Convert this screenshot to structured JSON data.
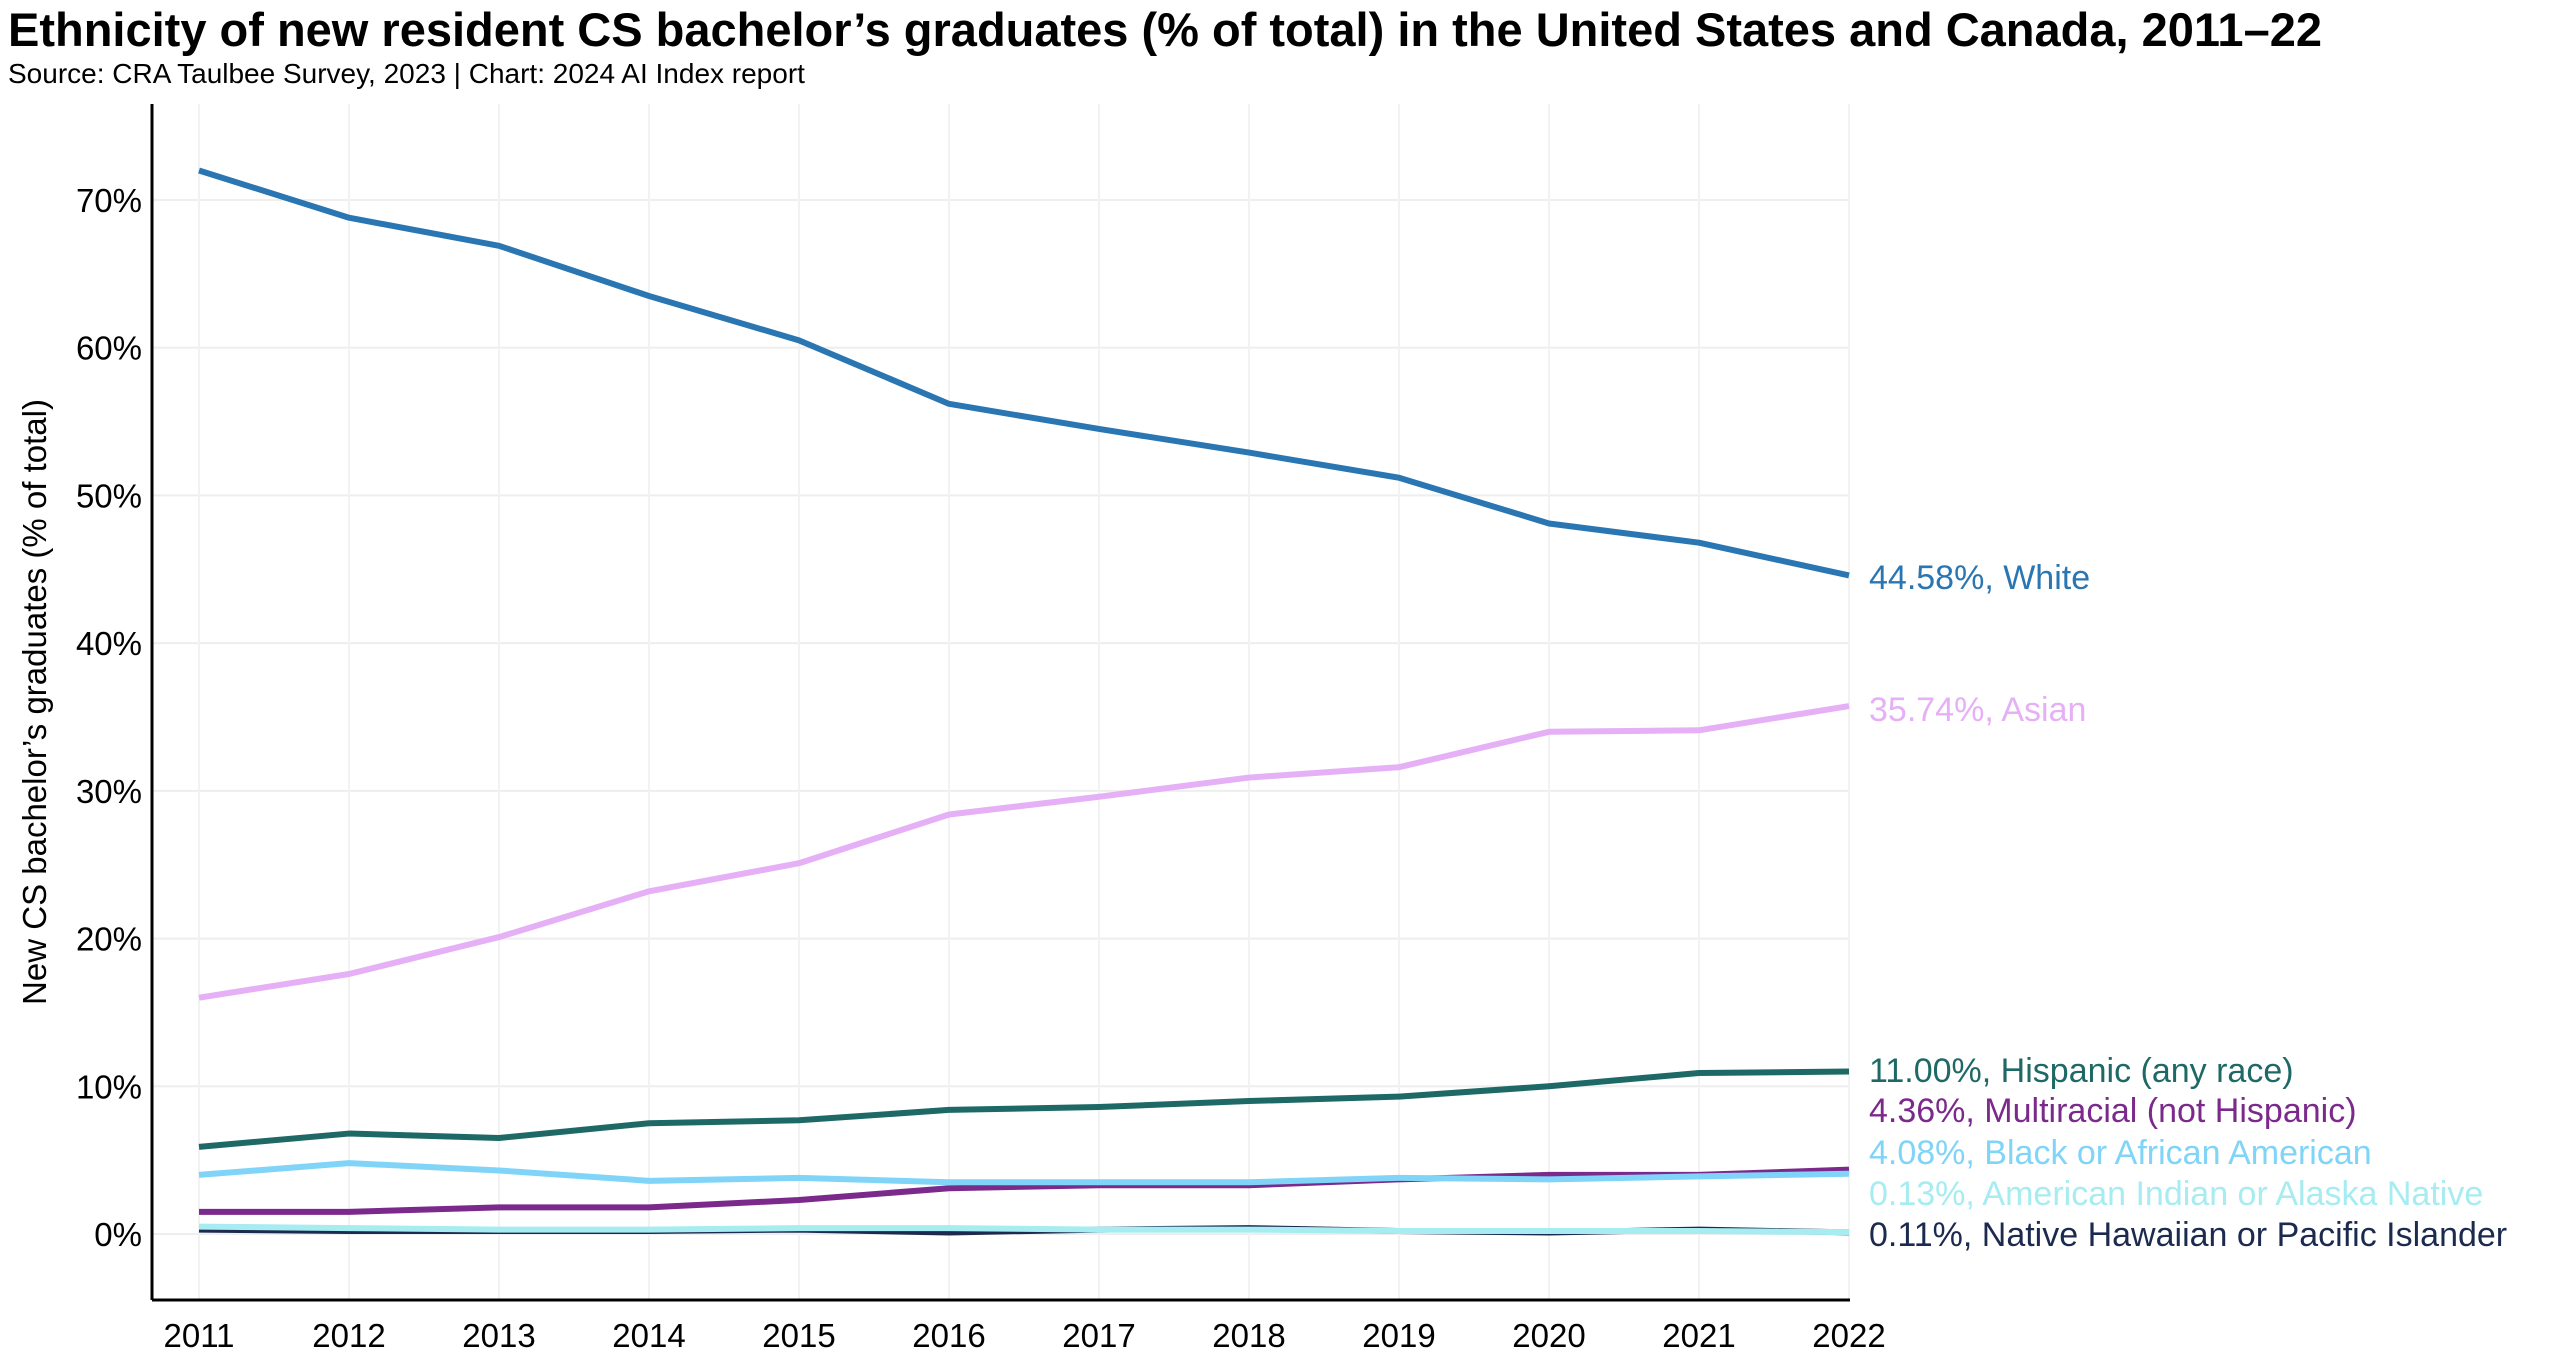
{
  "chart_data": {
    "type": "line",
    "title": "Ethnicity of new resident CS bachelor’s graduates (% of total) in the United States and Canada, 2011–22",
    "subtitle": "Source: CRA Taulbee Survey, 2023 | Chart: 2024 AI Index report",
    "xlabel": "",
    "ylabel": "New CS bachelor’s graduates (% of total)",
    "x": [
      2011,
      2012,
      2013,
      2014,
      2015,
      2016,
      2017,
      2018,
      2019,
      2020,
      2021,
      2022
    ],
    "x_tick_labels": [
      "2011",
      "2012",
      "2013",
      "2014",
      "2015",
      "2016",
      "2017",
      "2018",
      "2019",
      "2020",
      "2021",
      "2022"
    ],
    "ylim": [
      -4.5,
      76
    ],
    "y_ticks": [
      0,
      10,
      20,
      30,
      40,
      50,
      60,
      70
    ],
    "y_tick_labels": [
      "0%",
      "10%",
      "20%",
      "30%",
      "40%",
      "50%",
      "60%",
      "70%"
    ],
    "grid": true,
    "legend": "end-of-line labels, right",
    "series": [
      {
        "name": "White",
        "color": "#2a76b2",
        "label": "44.58%, White",
        "values": [
          72.0,
          68.8,
          66.9,
          63.5,
          60.5,
          56.2,
          54.5,
          52.9,
          51.2,
          48.1,
          46.8,
          44.58
        ]
      },
      {
        "name": "Asian",
        "color": "#e5b0f6",
        "label": "35.74%, Asian",
        "values": [
          16.0,
          17.6,
          20.1,
          23.2,
          25.1,
          28.4,
          29.6,
          30.9,
          31.6,
          34.0,
          34.1,
          35.74
        ]
      },
      {
        "name": "Hispanic (any race)",
        "color": "#1e6966",
        "label": "11.00%, Hispanic (any race)",
        "values": [
          5.9,
          6.8,
          6.5,
          7.5,
          7.7,
          8.4,
          8.6,
          9.0,
          9.3,
          10.0,
          10.9,
          11.0
        ]
      },
      {
        "name": "Multiracial (not Hispanic)",
        "color": "#7b2a8c",
        "label": "4.36%, Multiracial (not Hispanic)",
        "values": [
          1.5,
          1.5,
          1.8,
          1.8,
          2.3,
          3.1,
          3.3,
          3.3,
          3.7,
          4.0,
          4.0,
          4.36
        ]
      },
      {
        "name": "Black or African American",
        "color": "#80d4f8",
        "label": "4.08%, Black or African American",
        "values": [
          4.0,
          4.8,
          4.3,
          3.6,
          3.8,
          3.5,
          3.5,
          3.5,
          3.8,
          3.7,
          3.9,
          4.08
        ]
      },
      {
        "name": "Native Hawaiian or Pacific Islander",
        "color": "#1b2a4e",
        "label": "0.11%, Native Hawaiian or Pacific Islander",
        "values": [
          0.3,
          0.2,
          0.2,
          0.2,
          0.3,
          0.1,
          0.3,
          0.4,
          0.2,
          0.1,
          0.3,
          0.11
        ]
      },
      {
        "name": "American Indian or Alaska Native",
        "color": "#a6ecf1",
        "label": "0.13%, American Indian or Alaska Native",
        "values": [
          0.5,
          0.4,
          0.3,
          0.3,
          0.4,
          0.4,
          0.3,
          0.3,
          0.2,
          0.2,
          0.2,
          0.13
        ]
      }
    ]
  }
}
